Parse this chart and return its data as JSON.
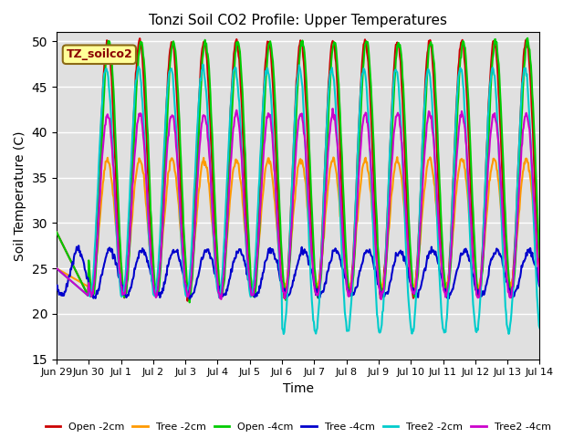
{
  "title": "Tonzi Soil CO2 Profile: Upper Temperatures",
  "xlabel": "Time",
  "ylabel": "Soil Temperature (C)",
  "ylim": [
    15,
    51
  ],
  "yticks": [
    15,
    20,
    25,
    30,
    35,
    40,
    45,
    50
  ],
  "background_color": "#e0e0e0",
  "annotation_text": "TZ_soilco2",
  "annotation_bg": "#ffff99",
  "annotation_border": "#8B6914",
  "series": [
    {
      "label": "Open -2cm",
      "color": "#cc0000",
      "lw": 1.5
    },
    {
      "label": "Tree -2cm",
      "color": "#ff9900",
      "lw": 1.5
    },
    {
      "label": "Open -4cm",
      "color": "#00cc00",
      "lw": 1.5
    },
    {
      "label": "Tree -4cm",
      "color": "#0000cc",
      "lw": 1.5
    },
    {
      "label": "Tree2 -2cm",
      "color": "#00cccc",
      "lw": 1.5
    },
    {
      "label": "Tree2 -4cm",
      "color": "#cc00cc",
      "lw": 1.5
    }
  ],
  "n_days": 15,
  "pts_per_day": 48,
  "xtick_labels": [
    "Jun 29",
    "Jun 30",
    "Jul 1",
    "Jul 2",
    "Jul 3",
    "Jul 4",
    "Jul 5",
    "Jul 6",
    "Jul 7",
    "Jul 8",
    "Jul 9",
    "Jul 10",
    "Jul 11",
    "Jul 12",
    "Jul 13",
    "Jul 14"
  ],
  "figsize": [
    6.4,
    4.8
  ],
  "dpi": 100
}
